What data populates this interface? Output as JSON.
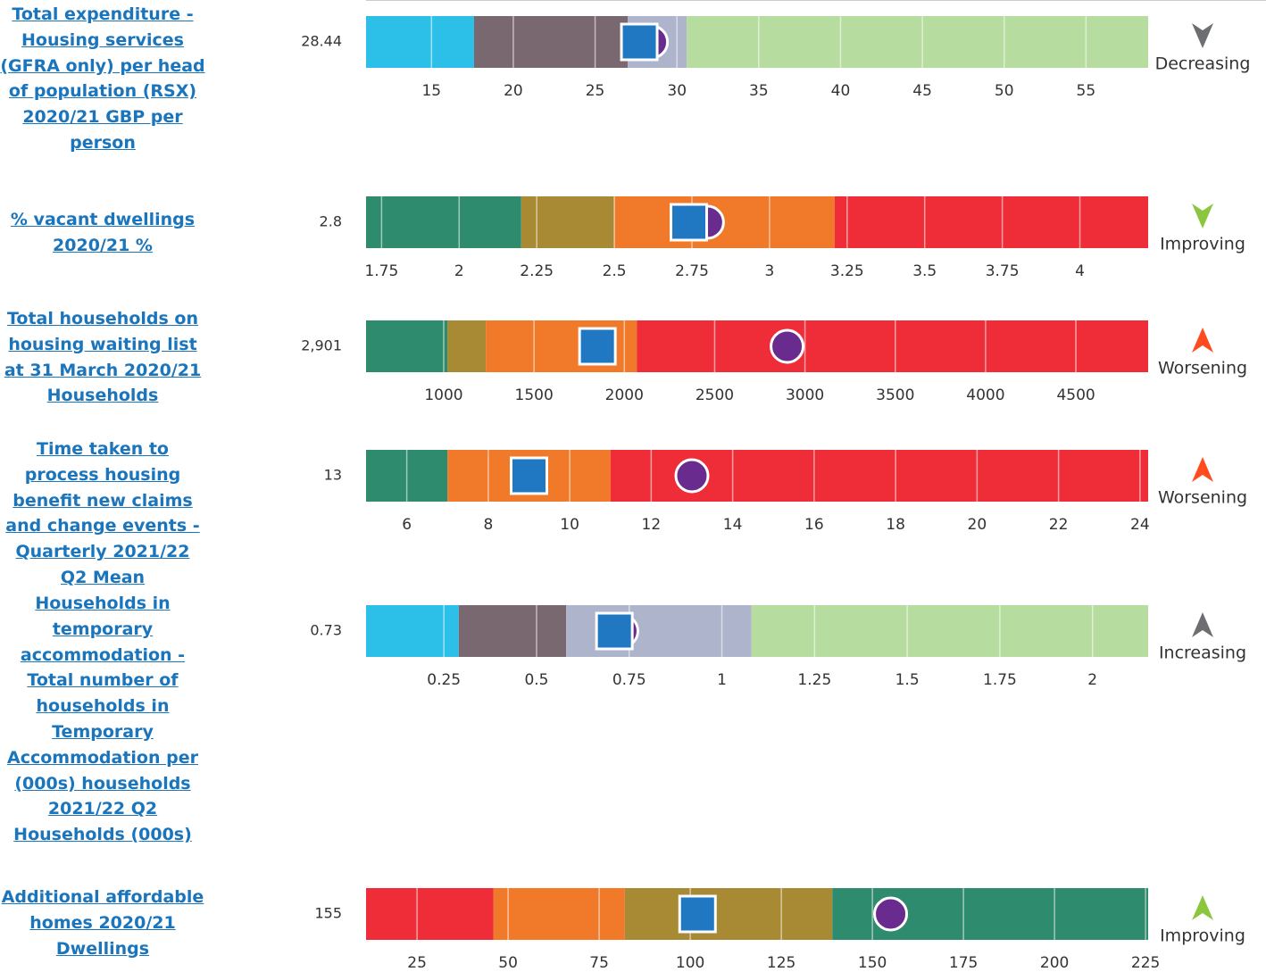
{
  "chart_data": [
    {
      "type": "bullet",
      "title": "Total expenditure - Housing services (GFRA only) per head of population (RSX) 2020/21 GBP per person",
      "value": 28.44,
      "comparator": 27.7,
      "xlim": [
        11,
        58.8
      ],
      "xticks": [
        15,
        20,
        25,
        30,
        35,
        40,
        45,
        50,
        55
      ],
      "grid": true,
      "bands": [
        {
          "color": "#2cc0e8",
          "value": 6.6
        },
        {
          "color": "#7a6870",
          "value": 9.4
        },
        {
          "color": "#aeb4cb",
          "value": 3.6
        },
        {
          "color": "#b6dc9f",
          "value": 28.2
        }
      ],
      "trend": "Decreasing",
      "trend_direction": "down",
      "trend_color": "#6d6e71"
    },
    {
      "type": "bullet",
      "title": "% vacant dwellings 2020/21 %",
      "value": 2.8,
      "comparator": 2.74,
      "xlim": [
        1.7,
        4.22
      ],
      "xticks": [
        1.75,
        2,
        2.25,
        2.5,
        2.75,
        3,
        3.25,
        3.5,
        3.75,
        4
      ],
      "grid": true,
      "bands": [
        {
          "color": "#2e8b6e",
          "value": 0.5
        },
        {
          "color": "#a88a35",
          "value": 0.3
        },
        {
          "color": "#f07a2a",
          "value": 0.71
        },
        {
          "color": "#ee2d38",
          "value": 1.01
        }
      ],
      "trend": "Improving",
      "trend_direction": "down",
      "trend_color": "#8cc63f"
    },
    {
      "type": "bullet",
      "title": "Total households on housing waiting list at 31 March 2020/21 Households",
      "value": 2901,
      "value_label": "2,901",
      "comparator": 1851,
      "xlim": [
        570,
        4900
      ],
      "xticks": [
        1000,
        1500,
        2000,
        2500,
        3000,
        3500,
        4000,
        4500
      ],
      "grid": true,
      "bands": [
        {
          "color": "#2e8b6e",
          "value": 450
        },
        {
          "color": "#a88a35",
          "value": 213
        },
        {
          "color": "#f07a2a",
          "value": 836
        },
        {
          "color": "#ee2d38",
          "value": 2831
        }
      ],
      "trend": "Worsening",
      "trend_direction": "up",
      "trend_color": "#ff4b1f"
    },
    {
      "type": "bullet",
      "title": "Time taken to process housing benefit new claims and change events - Quarterly 2021/22 Q2 Mean",
      "value": 13,
      "comparator": 9,
      "xlim": [
        5,
        24.2
      ],
      "xticks": [
        6,
        8,
        10,
        12,
        14,
        16,
        18,
        20,
        22,
        24
      ],
      "grid": true,
      "bands": [
        {
          "color": "#2e8b6e",
          "value": 2
        },
        {
          "color": "#f07a2a",
          "value": 4
        },
        {
          "color": "#ee2d38",
          "value": 13.2
        }
      ],
      "trend": "Worsening",
      "trend_direction": "up",
      "trend_color": "#ff4b1f"
    },
    {
      "type": "bullet",
      "title": "Households in temporary accommodation - Total number of households in Temporary Accommodation per (000s) households 2021/22 Q2 Households (000s)",
      "value": 0.73,
      "comparator": 0.71,
      "xlim": [
        0.04,
        2.15
      ],
      "xticks": [
        0.25,
        0.5,
        0.75,
        1,
        1.25,
        1.5,
        1.75,
        2
      ],
      "grid": true,
      "bands": [
        {
          "color": "#2cc0e8",
          "value": 0.25
        },
        {
          "color": "#7a6870",
          "value": 0.29
        },
        {
          "color": "#aeb4cb",
          "value": 0.5
        },
        {
          "color": "#b6dc9f",
          "value": 1.07
        }
      ],
      "trend": "Increasing",
      "trend_direction": "up",
      "trend_color": "#6d6e71"
    },
    {
      "type": "bullet",
      "title": "Additional affordable homes 2020/21 Dwellings",
      "value": 155,
      "comparator": 102,
      "xlim": [
        11,
        225.7
      ],
      "xticks": [
        25,
        50,
        75,
        100,
        125,
        150,
        175,
        200,
        225
      ],
      "grid": true,
      "bands": [
        {
          "color": "#ee2d38",
          "value": 35
        },
        {
          "color": "#f07a2a",
          "value": 36
        },
        {
          "color": "#a88a35",
          "value": 57
        },
        {
          "color": "#2e8b6e",
          "value": 86.7
        }
      ],
      "trend": "Improving",
      "trend_direction": "up",
      "trend_color": "#8cc63f"
    }
  ]
}
